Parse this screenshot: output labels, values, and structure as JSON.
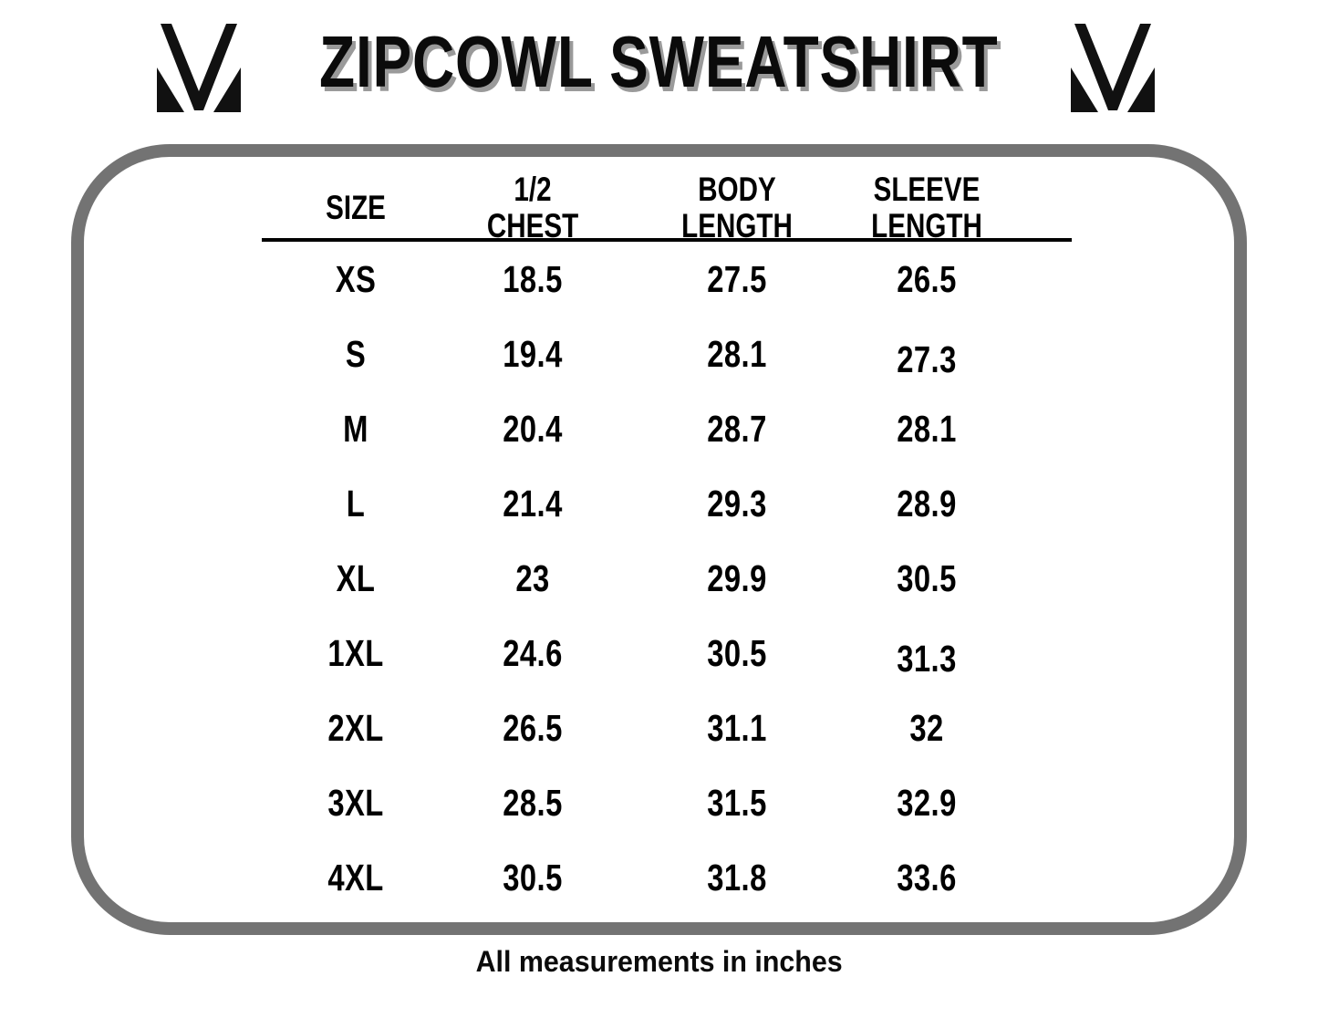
{
  "header": {
    "title": "ZIPCOWL SWEATSHIRT",
    "left_logo": "mv-monogram-logo",
    "right_logo": "mv-monogram-logo"
  },
  "table": {
    "columns": [
      "SIZE",
      "1/2 CHEST",
      "BODY\nLENGTH",
      "SLEEVE\nLENGTH"
    ],
    "rows": [
      [
        "XS",
        "18.5",
        "27.5",
        "26.5"
      ],
      [
        "S",
        "19.4",
        "28.1",
        "27.3"
      ],
      [
        "M",
        "20.4",
        "28.7",
        "28.1"
      ],
      [
        "L",
        "21.4",
        "29.3",
        "28.9"
      ],
      [
        "XL",
        "23",
        "29.9",
        "30.5"
      ],
      [
        "1XL",
        "24.6",
        "30.5",
        "31.3"
      ],
      [
        "2XL",
        "26.5",
        "31.1",
        "32"
      ],
      [
        "3XL",
        "28.5",
        "31.5",
        "32.9"
      ],
      [
        "4XL",
        "30.5",
        "31.8",
        "33.6"
      ]
    ]
  },
  "footer": {
    "note": "All measurements in inches"
  },
  "colors": {
    "card_border_gray": "#737373",
    "title_shadow_gray": "#9a9a9a",
    "text_black": "#0b0b0b"
  },
  "chart_data": {
    "type": "table",
    "title": "ZIPCOWL SWEATSHIRT",
    "columns": [
      "SIZE",
      "1/2 CHEST",
      "BODY LENGTH",
      "SLEEVE LENGTH"
    ],
    "rows": [
      [
        "XS",
        18.5,
        27.5,
        26.5
      ],
      [
        "S",
        19.4,
        28.1,
        27.3
      ],
      [
        "M",
        20.4,
        28.7,
        28.1
      ],
      [
        "L",
        21.4,
        29.3,
        28.9
      ],
      [
        "XL",
        23,
        29.9,
        30.5
      ],
      [
        "1XL",
        24.6,
        30.5,
        31.3
      ],
      [
        "2XL",
        26.5,
        31.1,
        32
      ],
      [
        "3XL",
        28.5,
        31.5,
        32.9
      ],
      [
        "4XL",
        30.5,
        31.8,
        33.6
      ]
    ],
    "units_note": "All measurements in inches"
  }
}
